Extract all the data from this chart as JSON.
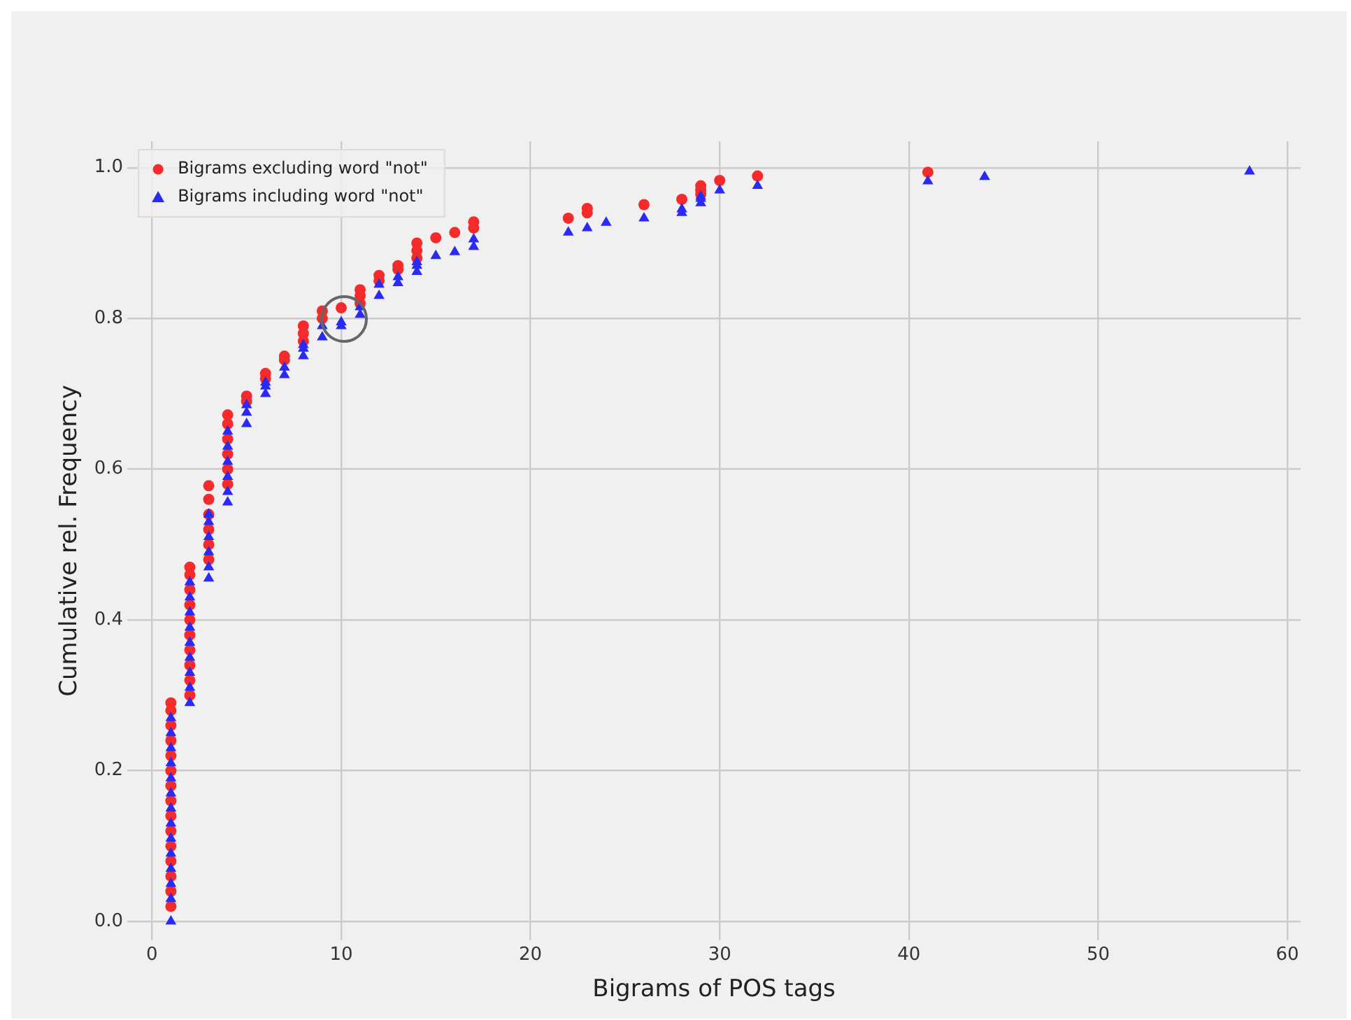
{
  "chart_data": {
    "type": "scatter",
    "xlabel": "Bigrams of POS tags",
    "ylabel": "Cumulative rel. Frequency",
    "xlim": [
      -1.3,
      60.7
    ],
    "ylim": [
      -0.025,
      1.035
    ],
    "xticks": [
      0,
      10,
      20,
      30,
      40,
      50,
      60
    ],
    "yticks": [
      {
        "value": 0,
        "label": "0.0"
      },
      0.2,
      0.4,
      0.6,
      0.8,
      {
        "value": 1,
        "label": "1.0"
      }
    ],
    "grid": true,
    "legend": "top left",
    "series": [
      {
        "name": "Bigrams excluding word \"not\"",
        "color": "#f52a2a",
        "marker": "circle",
        "x": [
          1,
          1,
          1,
          1,
          1,
          1,
          1,
          1,
          1,
          1,
          1,
          1,
          1,
          1,
          1,
          2,
          2,
          2,
          2,
          2,
          2,
          2,
          2,
          2,
          2,
          3,
          3,
          3,
          3,
          3,
          3,
          4,
          4,
          4,
          4,
          4,
          4,
          5,
          5,
          6,
          6,
          7,
          7,
          8,
          8,
          8,
          9,
          9,
          10,
          11,
          11,
          11,
          12,
          12,
          13,
          13,
          14,
          14,
          14,
          15,
          16,
          17,
          17,
          22,
          23,
          23,
          26,
          28,
          29,
          29,
          29,
          30,
          32,
          41
        ],
        "values": [
          0.02,
          0.04,
          0.06,
          0.08,
          0.1,
          0.12,
          0.14,
          0.16,
          0.18,
          0.2,
          0.22,
          0.24,
          0.26,
          0.28,
          0.29,
          0.3,
          0.32,
          0.34,
          0.36,
          0.38,
          0.4,
          0.42,
          0.44,
          0.46,
          0.47,
          0.48,
          0.5,
          0.52,
          0.54,
          0.56,
          0.578,
          0.58,
          0.6,
          0.62,
          0.64,
          0.66,
          0.672,
          0.69,
          0.697,
          0.72,
          0.727,
          0.745,
          0.75,
          0.77,
          0.78,
          0.79,
          0.8,
          0.81,
          0.814,
          0.82,
          0.83,
          0.838,
          0.85,
          0.857,
          0.865,
          0.87,
          0.88,
          0.89,
          0.9,
          0.907,
          0.914,
          0.92,
          0.928,
          0.933,
          0.94,
          0.946,
          0.951,
          0.958,
          0.965,
          0.97,
          0.976,
          0.983,
          0.989,
          0.994
        ]
      },
      {
        "name": "Bigrams including word \"not\"",
        "color": "#2a2af5",
        "marker": "triangle",
        "x": [
          1,
          1,
          1,
          1,
          1,
          1,
          1,
          1,
          1,
          1,
          1,
          1,
          1,
          1,
          2,
          2,
          2,
          2,
          2,
          2,
          2,
          2,
          2,
          3,
          3,
          3,
          3,
          3,
          3,
          4,
          4,
          4,
          4,
          4,
          4,
          5,
          5,
          5,
          6,
          6,
          6,
          7,
          7,
          8,
          8,
          8,
          9,
          9,
          10,
          10,
          11,
          11,
          12,
          12,
          13,
          13,
          14,
          14,
          14,
          15,
          16,
          17,
          17,
          22,
          23,
          24,
          26,
          28,
          28,
          29,
          29,
          29,
          30,
          32,
          41,
          44,
          58
        ],
        "values": [
          0,
          0.03,
          0.05,
          0.07,
          0.09,
          0.11,
          0.13,
          0.15,
          0.17,
          0.19,
          0.21,
          0.23,
          0.25,
          0.27,
          0.29,
          0.31,
          0.33,
          0.35,
          0.37,
          0.39,
          0.41,
          0.43,
          0.45,
          0.455,
          0.47,
          0.49,
          0.51,
          0.53,
          0.54,
          0.556,
          0.57,
          0.59,
          0.61,
          0.63,
          0.65,
          0.66,
          0.675,
          0.685,
          0.7,
          0.71,
          0.715,
          0.725,
          0.735,
          0.75,
          0.76,
          0.765,
          0.775,
          0.79,
          0.79,
          0.795,
          0.805,
          0.815,
          0.83,
          0.845,
          0.847,
          0.855,
          0.862,
          0.87,
          0.875,
          0.883,
          0.888,
          0.895,
          0.905,
          0.914,
          0.92,
          0.927,
          0.933,
          0.94,
          0.945,
          0.953,
          0.959,
          0.962,
          0.97,
          0.976,
          0.982,
          0.988,
          0.995
        ]
      }
    ]
  }
}
